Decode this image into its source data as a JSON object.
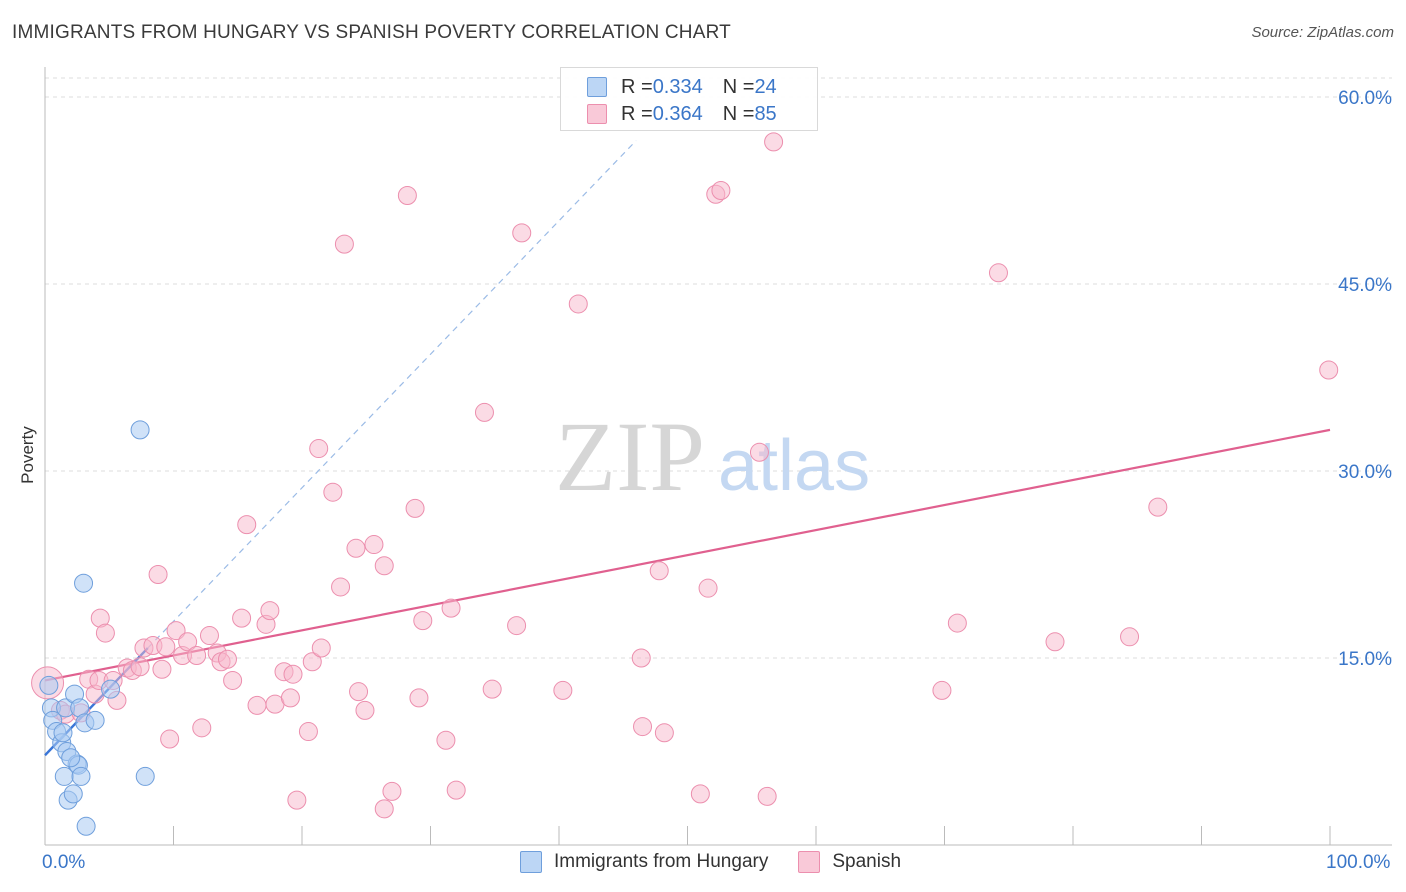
{
  "header": {
    "title": "IMMIGRANTS FROM HUNGARY VS SPANISH POVERTY CORRELATION CHART",
    "source": "Source: ZipAtlas.com"
  },
  "watermark": {
    "zip": "ZIP",
    "atlas": "atlas"
  },
  "legend_top": {
    "rows": [
      {
        "r_label": "R = ",
        "r_value": "0.334",
        "n_label": "N = ",
        "n_value": "24"
      },
      {
        "r_label": "R = ",
        "r_value": "0.364",
        "n_label": "N = ",
        "n_value": "85"
      }
    ]
  },
  "legend_bottom": {
    "items": [
      {
        "label": "Immigrants from Hungary"
      },
      {
        "label": "Spanish"
      }
    ]
  },
  "colors": {
    "blue_fill": "#a9cbf2",
    "blue_stroke": "#6f9fdc",
    "blue_line": "#3a76d8",
    "pink_fill": "#f7b8cc",
    "pink_stroke": "#ec8fae",
    "pink_line": "#e0608f",
    "axis_label": "#3a76c8",
    "grid": "#dddddd"
  },
  "chart_data": {
    "type": "scatter",
    "title": "IMMIGRANTS FROM HUNGARY VS SPANISH POVERTY CORRELATION CHART",
    "xlabel": "",
    "ylabel": "Poverty",
    "xlim": [
      0,
      100
    ],
    "ylim": [
      0,
      60
    ],
    "x_tick_labels": [
      "0.0%",
      "100.0%"
    ],
    "y_ticks": [
      15,
      30,
      45,
      60
    ],
    "y_tick_labels": [
      "15.0%",
      "30.0%",
      "45.0%",
      "60.0%"
    ],
    "grid": true,
    "series": [
      {
        "name": "Immigrants from Hungary",
        "color": "#6f9fdc",
        "R": 0.334,
        "N": 24,
        "trend": {
          "x": [
            0,
            8
          ],
          "y": [
            7.2,
            15.8
          ]
        },
        "trend_extension": {
          "x": [
            8,
            46
          ],
          "y": [
            15.8,
            56.5
          ]
        },
        "points": [
          [
            0.3,
            12.8
          ],
          [
            0.5,
            11.0
          ],
          [
            0.6,
            10.0
          ],
          [
            0.9,
            9.1
          ],
          [
            1.3,
            8.2
          ],
          [
            1.4,
            9.0
          ],
          [
            1.6,
            11.0
          ],
          [
            1.7,
            7.5
          ],
          [
            1.5,
            5.5
          ],
          [
            1.8,
            3.6
          ],
          [
            2.2,
            4.1
          ],
          [
            2.3,
            12.1
          ],
          [
            2.5,
            6.5
          ],
          [
            2.6,
            6.4
          ],
          [
            2.7,
            11.0
          ],
          [
            2.8,
            5.5
          ],
          [
            3.0,
            21.0
          ],
          [
            3.1,
            9.8
          ],
          [
            3.2,
            1.5
          ],
          [
            3.9,
            10.0
          ],
          [
            5.1,
            12.5
          ],
          [
            7.4,
            33.3
          ],
          [
            7.8,
            5.5
          ],
          [
            2.0,
            7.0
          ]
        ]
      },
      {
        "name": "Spanish",
        "color": "#ec8fae",
        "R": 0.364,
        "N": 85,
        "trend": {
          "x": [
            0,
            100
          ],
          "y": [
            13.2,
            33.3
          ]
        },
        "points": [
          [
            0.2,
            13.0
          ],
          [
            1.2,
            10.8
          ],
          [
            1.6,
            10.5
          ],
          [
            2.8,
            10.6
          ],
          [
            3.4,
            13.3
          ],
          [
            3.9,
            12.1
          ],
          [
            4.2,
            13.2
          ],
          [
            4.3,
            18.2
          ],
          [
            4.7,
            17.0
          ],
          [
            5.3,
            13.2
          ],
          [
            5.6,
            11.6
          ],
          [
            6.4,
            14.2
          ],
          [
            6.8,
            14.0
          ],
          [
            7.4,
            14.3
          ],
          [
            7.7,
            15.8
          ],
          [
            8.4,
            16.0
          ],
          [
            8.8,
            21.7
          ],
          [
            9.1,
            14.1
          ],
          [
            9.4,
            15.9
          ],
          [
            9.7,
            8.5
          ],
          [
            10.2,
            17.2
          ],
          [
            10.7,
            15.2
          ],
          [
            11.1,
            16.3
          ],
          [
            11.8,
            15.2
          ],
          [
            12.2,
            9.4
          ],
          [
            12.8,
            16.8
          ],
          [
            13.4,
            15.4
          ],
          [
            13.7,
            14.7
          ],
          [
            14.2,
            14.9
          ],
          [
            14.6,
            13.2
          ],
          [
            15.3,
            18.2
          ],
          [
            15.7,
            25.7
          ],
          [
            16.5,
            11.2
          ],
          [
            17.2,
            17.7
          ],
          [
            17.5,
            18.8
          ],
          [
            17.9,
            11.3
          ],
          [
            18.6,
            13.9
          ],
          [
            19.1,
            11.8
          ],
          [
            19.3,
            13.7
          ],
          [
            19.6,
            3.6
          ],
          [
            20.5,
            9.1
          ],
          [
            20.8,
            14.7
          ],
          [
            21.5,
            15.8
          ],
          [
            21.3,
            31.8
          ],
          [
            22.4,
            28.3
          ],
          [
            23.0,
            20.7
          ],
          [
            23.3,
            48.2
          ],
          [
            24.2,
            23.8
          ],
          [
            24.4,
            12.3
          ],
          [
            24.9,
            10.8
          ],
          [
            25.6,
            24.1
          ],
          [
            26.4,
            22.4
          ],
          [
            26.4,
            2.9
          ],
          [
            27.0,
            4.3
          ],
          [
            28.2,
            52.1
          ],
          [
            28.8,
            27.0
          ],
          [
            29.1,
            11.8
          ],
          [
            29.4,
            18.0
          ],
          [
            31.2,
            8.4
          ],
          [
            31.6,
            19.0
          ],
          [
            32.0,
            4.4
          ],
          [
            34.2,
            34.7
          ],
          [
            34.8,
            12.5
          ],
          [
            36.7,
            17.6
          ],
          [
            37.1,
            49.1
          ],
          [
            40.3,
            12.4
          ],
          [
            41.5,
            43.4
          ],
          [
            46.4,
            15.0
          ],
          [
            46.5,
            9.5
          ],
          [
            47.8,
            22.0
          ],
          [
            48.2,
            9.0
          ],
          [
            51.0,
            4.1
          ],
          [
            51.6,
            20.6
          ],
          [
            52.2,
            52.2
          ],
          [
            52.6,
            52.5
          ],
          [
            55.6,
            31.5
          ],
          [
            56.2,
            3.9
          ],
          [
            56.7,
            56.4
          ],
          [
            69.8,
            12.4
          ],
          [
            71.0,
            17.8
          ],
          [
            74.2,
            45.9
          ],
          [
            78.6,
            16.3
          ],
          [
            84.4,
            16.7
          ],
          [
            86.6,
            27.1
          ],
          [
            99.9,
            38.1
          ]
        ]
      }
    ]
  }
}
